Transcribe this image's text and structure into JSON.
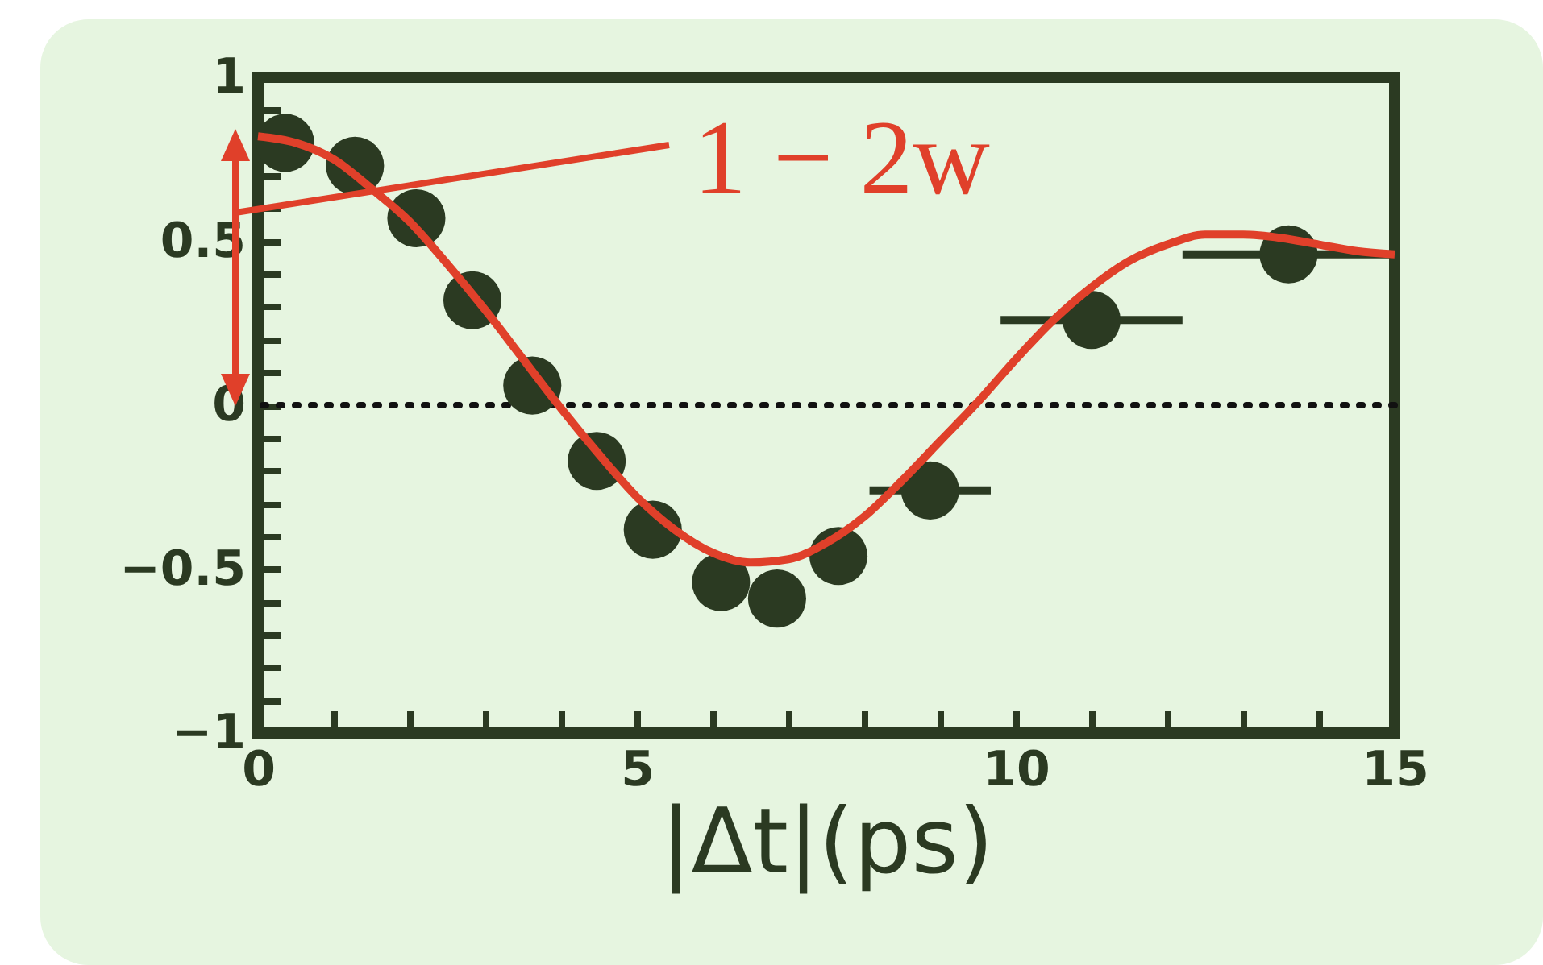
{
  "chart_data": {
    "type": "scatter",
    "xlabel": "|Δt|(ps)",
    "xlim": [
      0,
      15
    ],
    "ylim": [
      -1,
      1
    ],
    "xticks": [
      0,
      {
        "value": 1,
        "label": null
      },
      {
        "value": 2,
        "label": null
      },
      {
        "value": 3,
        "label": null
      },
      {
        "value": 4,
        "label": null
      },
      5,
      {
        "value": 6,
        "label": null
      },
      {
        "value": 7,
        "label": null
      },
      {
        "value": 8,
        "label": null
      },
      {
        "value": 9,
        "label": null
      },
      10,
      {
        "value": 11,
        "label": null
      },
      {
        "value": 12,
        "label": null
      },
      {
        "value": 13,
        "label": null
      },
      {
        "value": 14,
        "label": null
      },
      15
    ],
    "yticks": [
      {
        "value": -1,
        "label": "−1"
      },
      {
        "value": -0.9,
        "label": null
      },
      {
        "value": -0.8,
        "label": null
      },
      {
        "value": -0.7,
        "label": null
      },
      {
        "value": -0.6,
        "label": null
      },
      {
        "value": -0.5,
        "label": "−0.5"
      },
      {
        "value": -0.4,
        "label": null
      },
      {
        "value": -0.3,
        "label": null
      },
      {
        "value": -0.2,
        "label": null
      },
      {
        "value": -0.1,
        "label": null
      },
      0,
      {
        "value": 0.1,
        "label": null
      },
      {
        "value": 0.2,
        "label": null
      },
      {
        "value": 0.3,
        "label": null
      },
      {
        "value": 0.4,
        "label": null
      },
      0.5,
      {
        "value": 0.6,
        "label": null
      },
      {
        "value": 0.7,
        "label": null
      },
      {
        "value": 0.8,
        "label": null
      },
      {
        "value": 0.9,
        "label": null
      },
      1
    ],
    "grid": false,
    "series": [
      {
        "type": "scatter",
        "marker": "circle",
        "color": "#2b3a22",
        "x": [
          0.36,
          1.28,
          2.09,
          2.83,
          3.62,
          4.47,
          5.21,
          6.11,
          6.85,
          7.66,
          8.87,
          11.0,
          13.6
        ],
        "values": [
          0.8,
          0.73,
          0.57,
          0.32,
          0.06,
          -0.17,
          -0.38,
          -0.54,
          -0.59,
          -0.46,
          -0.26,
          0.26,
          0.46
        ],
        "xerrors": [
          null,
          null,
          null,
          null,
          null,
          null,
          null,
          null,
          null,
          null,
          0.8,
          1.2,
          1.4
        ]
      },
      {
        "type": "line",
        "color": "#e0402a",
        "line_style": "solid",
        "x": [
          0,
          0.5,
          1,
          1.5,
          2,
          2.5,
          3,
          3.5,
          4,
          4.5,
          5,
          5.5,
          6,
          6.5,
          7,
          7.5,
          8,
          8.5,
          9,
          9.5,
          10,
          10.5,
          11,
          11.5,
          12,
          12.5,
          13,
          13.5,
          14,
          14.5,
          15
        ],
        "values": [
          0.82,
          0.8,
          0.75,
          0.66,
          0.56,
          0.43,
          0.29,
          0.14,
          -0.01,
          -0.15,
          -0.28,
          -0.38,
          -0.45,
          -0.48,
          -0.47,
          -0.42,
          -0.34,
          -0.23,
          -0.11,
          0.01,
          0.14,
          0.26,
          0.36,
          0.44,
          0.49,
          0.52,
          0.52,
          0.51,
          0.49,
          0.47,
          0.46
        ]
      }
    ],
    "ref_lines": [
      {
        "axis": "y",
        "value": 0,
        "color": "#111111",
        "line_style": "dotted"
      }
    ],
    "annotations": [
      "1 − 2w"
    ]
  }
}
